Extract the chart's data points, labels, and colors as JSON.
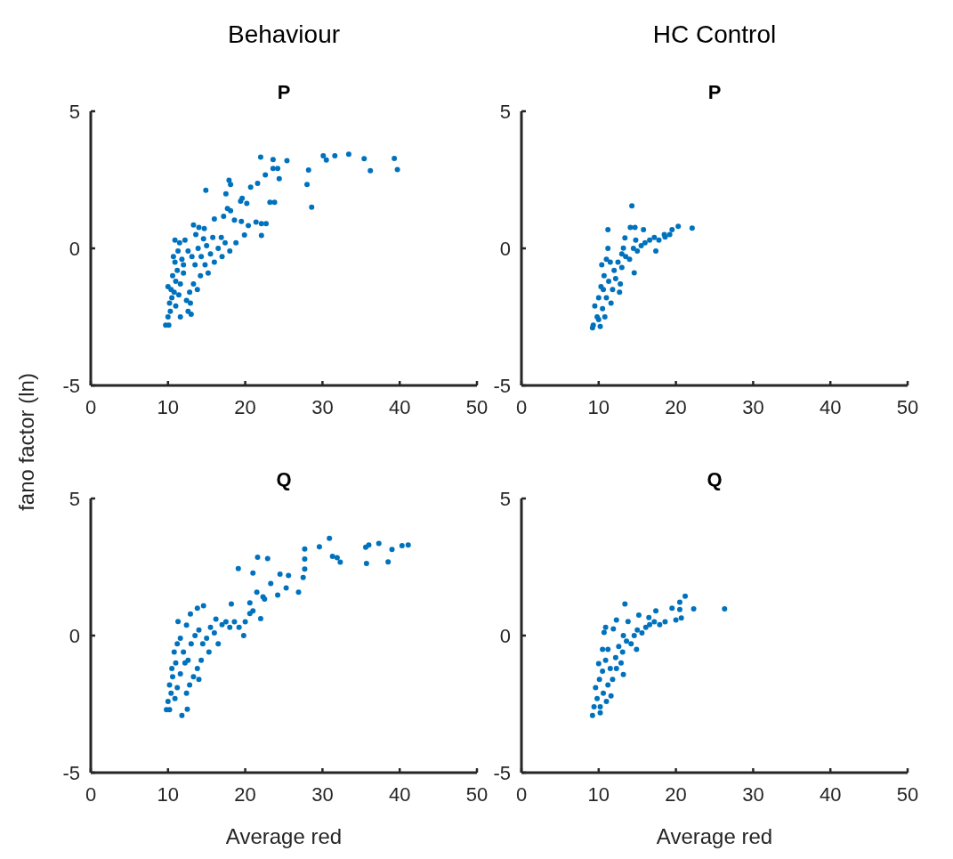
{
  "chart_data": [
    {
      "type": "scatter",
      "subtitle": "Behaviour",
      "title": "P",
      "xlim": [
        0,
        50
      ],
      "xticks": [
        0,
        10,
        20,
        30,
        40,
        50
      ],
      "ylim": [
        -5,
        5
      ],
      "yticks": [
        -5,
        0,
        5
      ],
      "color": "#0072bd",
      "marker": "circle",
      "x": [
        22.0,
        23.6,
        25.4,
        23.6,
        24.2,
        22.6,
        24.4,
        21.6,
        20.7,
        17.9,
        18.1,
        14.9,
        17.5,
        19.6,
        19.4,
        20.2,
        23.2,
        23.8,
        17.7,
        18.1,
        17.2,
        16.0,
        18.6,
        19.5,
        20.4,
        21.4,
        22.1,
        22.7,
        22.1,
        19.9,
        13.3,
        14.0,
        14.7,
        30.1,
        30.5,
        31.6,
        33.4,
        35.4,
        36.2,
        39.3,
        39.7,
        28.2,
        28.0,
        28.6,
        9.7,
        10.1,
        10.0,
        10.3,
        10.2,
        10.5,
        10.4,
        10.0,
        10.8,
        11.0,
        10.6,
        11.2,
        10.9,
        10.7,
        11.3,
        10.9,
        11.5,
        11.8,
        12.0,
        11.6,
        11.4,
        11.0,
        12.6,
        13.0,
        12.4,
        12.8,
        13.3,
        13.8,
        14.2,
        12.6,
        13.1,
        13.5,
        13.9,
        14.3,
        14.8,
        15.0,
        15.5,
        16.0,
        16.5,
        15.8,
        16.9,
        17.4,
        18.0,
        18.8,
        12.2,
        13.6,
        14.6,
        11.6,
        12.9,
        12.0,
        15.2,
        17.0
      ],
      "values": [
        3.33,
        3.24,
        3.2,
        2.91,
        2.91,
        2.68,
        2.54,
        2.37,
        2.23,
        2.48,
        2.33,
        2.12,
        1.99,
        1.83,
        1.72,
        1.64,
        1.68,
        1.68,
        1.45,
        1.37,
        1.17,
        1.07,
        1.03,
        0.98,
        0.83,
        0.96,
        0.9,
        0.9,
        0.47,
        0.49,
        0.85,
        0.76,
        0.72,
        3.38,
        3.22,
        3.38,
        3.43,
        3.27,
        2.83,
        3.28,
        2.87,
        2.86,
        2.33,
        1.5,
        -2.8,
        -2.8,
        -2.5,
        -2.3,
        -2.0,
        -1.8,
        -1.5,
        -1.4,
        -1.6,
        -1.2,
        -1.0,
        -0.8,
        -0.5,
        -0.3,
        -0.1,
        0.3,
        0.2,
        -0.4,
        -0.9,
        -1.3,
        -1.7,
        -2.1,
        -2.3,
        -2.4,
        -1.9,
        -1.6,
        -1.3,
        -1.5,
        -1.0,
        -0.1,
        -0.3,
        -0.6,
        0.0,
        -0.3,
        -0.6,
        0.1,
        -0.2,
        -0.5,
        0.0,
        0.4,
        0.4,
        0.2,
        -0.1,
        0.2,
        0.3,
        0.5,
        0.35,
        -2.5,
        -2.0,
        -0.6,
        -0.9,
        -0.3
      ]
    },
    {
      "type": "scatter",
      "subtitle": "HC Control",
      "title": "P",
      "xlim": [
        0,
        50
      ],
      "xticks": [
        0,
        10,
        20,
        30,
        40,
        50
      ],
      "ylim": [
        -5,
        5
      ],
      "yticks": [
        -5,
        0,
        5
      ],
      "color": "#0072bd",
      "marker": "circle",
      "x": [
        14.3,
        11.2,
        22.1,
        20.3,
        19.5,
        14.1,
        14.7,
        15.8,
        13.4,
        11.2,
        13.2,
        18.6,
        17.4,
        14.6,
        12.7,
        9.2,
        10.2,
        9.3,
        9.8,
        10.0,
        9.5,
        10.0,
        10.5,
        10.8,
        10.3,
        10.7,
        10.4,
        11.0,
        11.5,
        11.3,
        11.8,
        11.0,
        12.0,
        12.5,
        12.2,
        13.0,
        13.5,
        13.0,
        14.0,
        14.5,
        15.0,
        15.5,
        16.0,
        16.6,
        17.2,
        17.8,
        18.5,
        19.2,
        14.8,
        12.8,
        11.6,
        10.6
      ],
      "values": [
        1.55,
        0.68,
        0.74,
        0.8,
        0.68,
        0.76,
        0.76,
        0.68,
        0.38,
        0.0,
        0.01,
        0.41,
        -0.1,
        -0.89,
        -1.6,
        -2.9,
        -2.85,
        -2.8,
        -2.5,
        -2.6,
        -2.1,
        -1.8,
        -2.2,
        -2.5,
        -1.4,
        -1.0,
        -0.6,
        -0.4,
        -0.5,
        -1.2,
        -1.5,
        -1.8,
        -0.8,
        -0.5,
        -1.1,
        -0.7,
        -0.3,
        -0.2,
        -0.4,
        0.0,
        -0.1,
        0.1,
        0.2,
        0.3,
        0.4,
        0.3,
        0.5,
        0.5,
        0.3,
        -1.3,
        -2.0,
        -1.5
      ]
    },
    {
      "type": "scatter",
      "title": "Q",
      "xlabel": "Average red",
      "ylabel": "fano factor (ln)",
      "xlim": [
        0,
        50
      ],
      "xticks": [
        0,
        10,
        20,
        30,
        40,
        50
      ],
      "ylim": [
        -5,
        5
      ],
      "yticks": [
        -5,
        0,
        5
      ],
      "color": "#0072bd",
      "marker": "circle",
      "x": [
        30.9,
        29.6,
        27.7,
        27.7,
        27.7,
        27.5,
        26.9,
        31.3,
        31.9,
        32.3,
        35.6,
        36.0,
        37.3,
        39.0,
        40.3,
        41.1,
        35.7,
        38.5,
        21.6,
        22.9,
        19.1,
        21.0,
        24.5,
        25.6,
        23.3,
        25.3,
        24.2,
        22.3,
        22.5,
        21.5,
        20.6,
        22.0,
        14.6,
        13.8,
        12.9,
        11.3,
        12.4,
        18.2,
        11.8,
        12.5,
        9.8,
        10.2,
        10.0,
        10.4,
        10.2,
        10.6,
        10.5,
        11.0,
        10.8,
        11.2,
        11.6,
        12.0,
        11.6,
        11.2,
        10.9,
        12.4,
        12.8,
        13.3,
        13.8,
        14.3,
        12.6,
        13.0,
        13.5,
        14.0,
        14.5,
        15.0,
        15.5,
        16.0,
        16.5,
        17.0,
        17.5,
        18.0,
        18.6,
        19.2,
        20.0,
        20.6,
        21.0,
        19.8,
        16.2,
        15.3,
        14.0,
        12.2
      ],
      "values": [
        3.55,
        3.24,
        3.16,
        2.79,
        2.43,
        2.12,
        1.58,
        2.89,
        2.84,
        2.68,
        3.22,
        3.3,
        3.36,
        3.14,
        3.28,
        3.3,
        2.63,
        2.69,
        2.86,
        2.81,
        2.44,
        2.28,
        2.24,
        2.19,
        1.9,
        1.74,
        1.48,
        1.41,
        1.33,
        1.58,
        1.19,
        0.62,
        1.09,
        1.0,
        0.79,
        0.51,
        0.38,
        1.15,
        -2.91,
        -2.69,
        -2.7,
        -2.7,
        -2.4,
        -2.1,
        -1.8,
        -1.5,
        -1.2,
        -1.0,
        -0.6,
        -0.3,
        -0.1,
        -0.6,
        -1.4,
        -1.9,
        -2.3,
        -2.1,
        -1.8,
        -1.5,
        -1.2,
        -0.9,
        -0.9,
        -0.3,
        0.0,
        0.2,
        -0.3,
        -0.1,
        0.3,
        0.1,
        -0.3,
        0.4,
        0.5,
        0.3,
        0.5,
        0.3,
        0.5,
        0.8,
        0.9,
        0.0,
        0.6,
        -0.6,
        -1.6,
        -1.0
      ]
    },
    {
      "type": "scatter",
      "title": "Q",
      "xlabel": "Average red",
      "xlim": [
        0,
        50
      ],
      "xticks": [
        0,
        10,
        20,
        30,
        40,
        50
      ],
      "ylim": [
        -5,
        5
      ],
      "yticks": [
        -5,
        0,
        5
      ],
      "color": "#0072bd",
      "marker": "circle",
      "x": [
        26.3,
        21.2,
        20.5,
        22.3,
        19.5,
        20.5,
        20.7,
        20.0,
        13.4,
        17.4,
        15.2,
        16.5,
        12.3,
        13.8,
        10.9,
        11.9,
        10.7,
        13.2,
        9.2,
        10.2,
        10.0,
        9.4,
        9.8,
        10.2,
        9.6,
        10.1,
        10.6,
        11.0,
        10.5,
        10.9,
        10.5,
        11.2,
        11.5,
        11.8,
        11.2,
        12.2,
        12.6,
        12.3,
        13.1,
        13.6,
        13.2,
        14.2,
        14.6,
        15.0,
        15.6,
        16.1,
        16.6,
        17.2,
        17.9,
        18.6,
        14.9,
        12.9,
        11.6
      ],
      "values": [
        0.97,
        1.44,
        1.22,
        0.97,
        1.0,
        0.95,
        0.64,
        0.57,
        1.15,
        0.9,
        0.75,
        0.66,
        0.57,
        0.51,
        0.3,
        0.24,
        0.11,
        -1.42,
        -2.91,
        -2.82,
        -1.02,
        -2.6,
        -2.3,
        -2.6,
        -1.9,
        -1.6,
        -2.1,
        -2.4,
        -1.3,
        -0.9,
        -0.5,
        -0.5,
        -1.2,
        -1.6,
        -1.8,
        -0.8,
        -0.4,
        -1.2,
        -0.6,
        -0.2,
        0.0,
        -0.3,
        0.0,
        0.2,
        0.1,
        0.3,
        0.4,
        0.5,
        0.4,
        0.5,
        -0.5,
        -1.0,
        -2.2
      ]
    }
  ]
}
